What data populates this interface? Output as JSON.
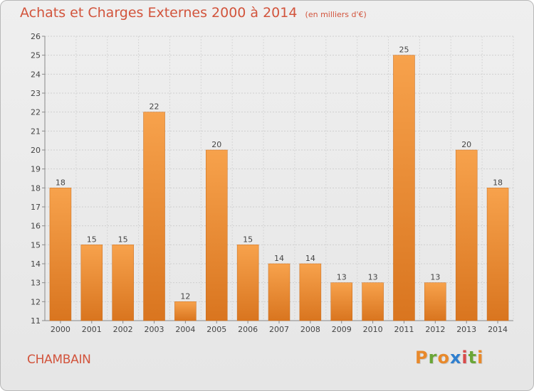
{
  "header": {
    "title": "Achats et Charges Externes 2000 à 2014",
    "unit": "(en milliers d'€)"
  },
  "footer": {
    "town": "CHAMBAIN",
    "logo": "Proxiti"
  },
  "colors": {
    "title": "#d2543c",
    "bar_light": "#f7a24c",
    "bar_dark": "#d9751f",
    "logo_letters": [
      "#e8892b",
      "#6aa637",
      "#e8892b",
      "#2f7fcf",
      "#d84a4a",
      "#6aa637",
      "#e8892b"
    ]
  },
  "chart_data": {
    "type": "bar",
    "title": "Achats et Charges Externes 2000 à 2014",
    "subtitle": "(en milliers d'€)",
    "xlabel": "",
    "ylabel": "",
    "categories": [
      "2000",
      "2001",
      "2002",
      "2003",
      "2004",
      "2005",
      "2006",
      "2007",
      "2008",
      "2009",
      "2010",
      "2011",
      "2012",
      "2013",
      "2014"
    ],
    "values": [
      18,
      15,
      15,
      22,
      12,
      20,
      15,
      14,
      14,
      13,
      13,
      25,
      13,
      20,
      18
    ],
    "ylim": [
      11,
      26
    ],
    "yticks": [
      11,
      12,
      13,
      14,
      15,
      16,
      17,
      18,
      19,
      20,
      21,
      22,
      23,
      24,
      25,
      26
    ],
    "grid": true,
    "data_labels": true
  }
}
